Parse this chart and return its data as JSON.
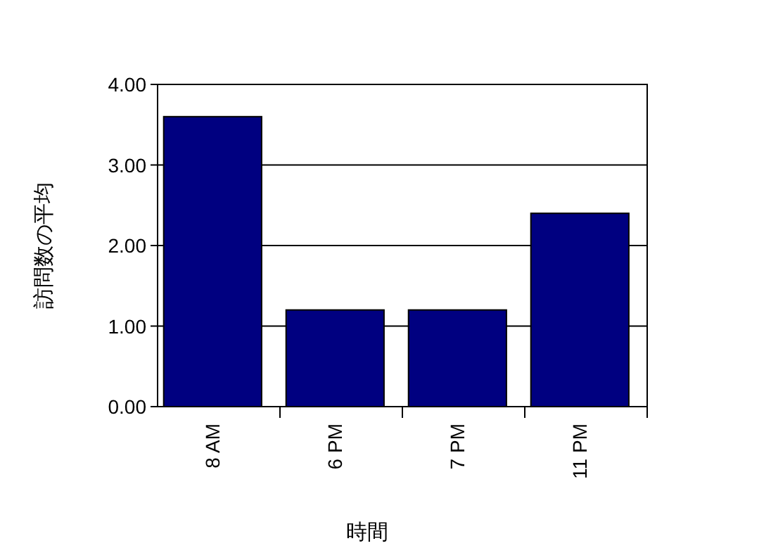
{
  "chart_data": {
    "type": "bar",
    "xlabel": "時間",
    "ylabel": "訪問数の平均",
    "categories": [
      "8 AM",
      "6 PM",
      "7 PM",
      "11 PM"
    ],
    "values": [
      3.6,
      1.2,
      1.2,
      2.4
    ],
    "color": "#000080",
    "ylim": [
      0,
      4
    ],
    "yticks": [
      {
        "value": 0,
        "label": "0.00"
      },
      {
        "value": 1,
        "label": "1.00"
      },
      {
        "value": 2,
        "label": "2.00"
      },
      {
        "value": 3,
        "label": "3.00"
      },
      {
        "value": 4,
        "label": "4.00"
      }
    ],
    "grid": "y"
  }
}
